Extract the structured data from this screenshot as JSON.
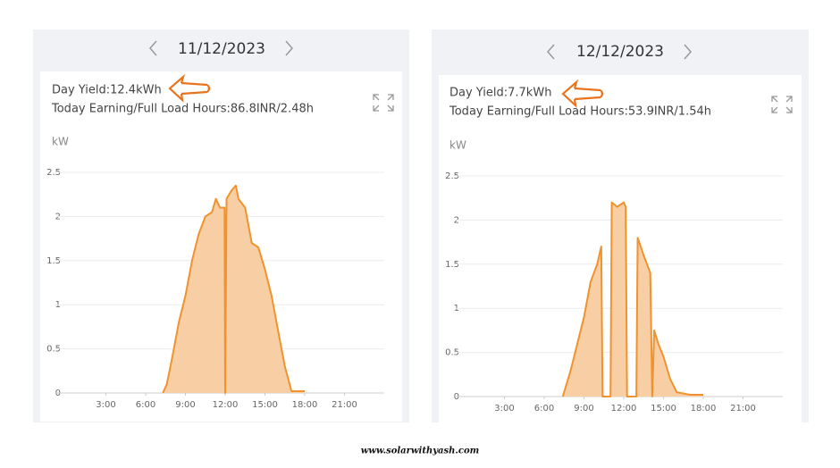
{
  "chart_data": [
    {
      "type": "area",
      "title": "11/12/2023",
      "annotations": [
        "Day Yield:12.4kWh",
        "Today Earning/Full Load Hours:86.8INR/2.48h"
      ],
      "y_label": "kW",
      "color": "#f0922e",
      "fill": "#f8cfa5",
      "grid": true,
      "xlim": [
        0,
        24
      ],
      "ylim": [
        0,
        2.5
      ],
      "xticks": [
        {
          "value": 3,
          "label": "3:00"
        },
        {
          "value": 6,
          "label": "6:00"
        },
        {
          "value": 9,
          "label": "9:00"
        },
        {
          "value": 12,
          "label": "12:00"
        },
        {
          "value": 15,
          "label": "15:00"
        },
        {
          "value": 18,
          "label": "18:00"
        },
        {
          "value": 21,
          "label": "21:00"
        }
      ],
      "yticks": [
        0,
        0.5,
        1,
        1.5,
        2,
        2.5
      ],
      "x": [
        7.3,
        7.6,
        8,
        8.5,
        9,
        9.5,
        10,
        10.5,
        11,
        11.3,
        11.6,
        11.95,
        12.0,
        12.1,
        12.5,
        12.8,
        13,
        13.5,
        14,
        14.5,
        15,
        15.5,
        16,
        16.5,
        17,
        18
      ],
      "values": [
        0,
        0.1,
        0.4,
        0.8,
        1.1,
        1.5,
        1.8,
        2.0,
        2.05,
        2.2,
        2.1,
        2.1,
        0,
        2.2,
        2.3,
        2.35,
        2.2,
        2.1,
        1.7,
        1.65,
        1.4,
        1.1,
        0.7,
        0.3,
        0.02,
        0.02
      ]
    },
    {
      "type": "area",
      "title": "12/12/2023",
      "annotations": [
        "Day Yield:7.7kWh",
        "Today Earning/Full Load Hours:53.9INR/1.54h"
      ],
      "y_label": "kW",
      "color": "#f0922e",
      "fill": "#f8cfa5",
      "grid": true,
      "xlim": [
        0,
        24
      ],
      "ylim": [
        0,
        2.5
      ],
      "xticks": [
        {
          "value": 3,
          "label": "3:00"
        },
        {
          "value": 6,
          "label": "6:00"
        },
        {
          "value": 9,
          "label": "9:00"
        },
        {
          "value": 12,
          "label": "12:00"
        },
        {
          "value": 15,
          "label": "15:00"
        },
        {
          "value": 18,
          "label": "18:00"
        },
        {
          "value": 21,
          "label": "21:00"
        }
      ],
      "yticks": [
        0,
        0.5,
        1,
        1.5,
        2,
        2.5
      ],
      "x": [
        7.4,
        8,
        8.5,
        9,
        9.5,
        10,
        10.3,
        10.4,
        11,
        11.1,
        11.5,
        12,
        12.15,
        12.25,
        12.95,
        13.05,
        13.5,
        14,
        14.15,
        14.3,
        14.6,
        15,
        15.5,
        16,
        17,
        18
      ],
      "values": [
        0,
        0.3,
        0.6,
        0.9,
        1.3,
        1.5,
        1.7,
        0,
        0,
        2.2,
        2.15,
        2.2,
        2.15,
        0,
        0,
        1.8,
        1.6,
        1.4,
        0,
        0.75,
        0.6,
        0.45,
        0.2,
        0.05,
        0.02,
        0.02
      ]
    }
  ],
  "footer": "www.solarwithyash.com"
}
